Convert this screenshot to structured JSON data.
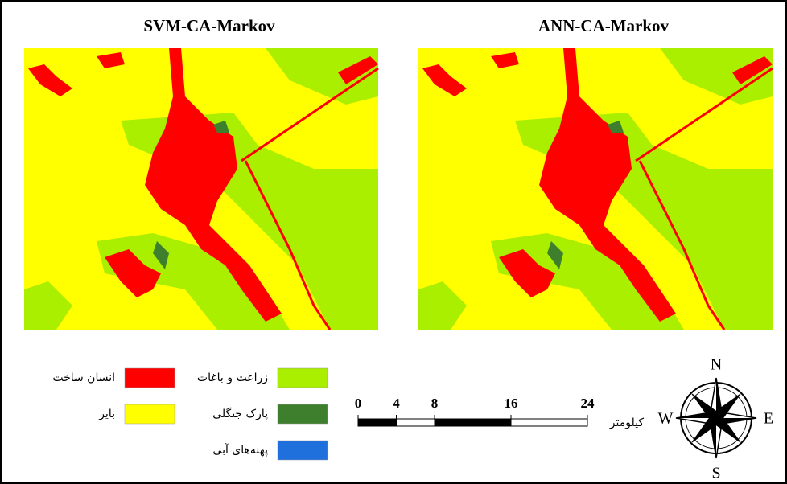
{
  "maps": [
    {
      "title": "SVM-CA-Markov"
    },
    {
      "title": "ANN-CA-Markov"
    }
  ],
  "legend": [
    {
      "label": "انسان ساخت",
      "color": "#ff0000"
    },
    {
      "label": "زراعت و باغات",
      "color": "#aaee00"
    },
    {
      "label": "بایر",
      "color": "#ffff00"
    },
    {
      "label": "پارک جنگلی",
      "color": "#3d7f2c"
    },
    {
      "label": "پهنه‌های آبی",
      "color": "#1f6fdc"
    }
  ],
  "scale_bar": {
    "unit": "کیلومتر",
    "ticks": [
      0,
      4,
      8,
      16,
      24
    ]
  },
  "compass": {
    "north": "N",
    "east": "E",
    "south": "S",
    "west": "W"
  }
}
